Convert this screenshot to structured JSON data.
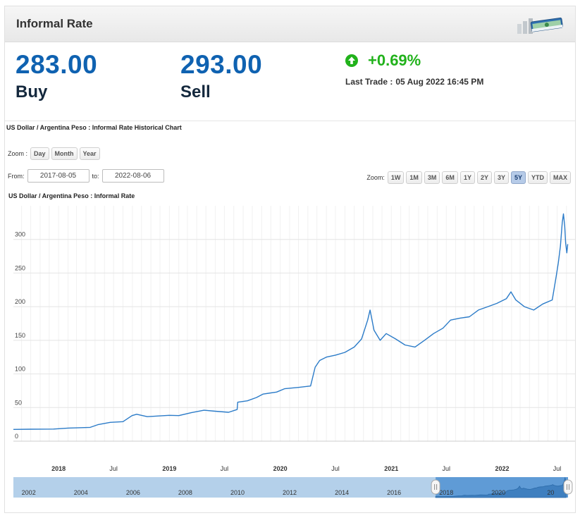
{
  "header": {
    "title": "Informal Rate",
    "icon": "money-stack-icon"
  },
  "quote": {
    "buy_value": "283.00",
    "buy_label": "Buy",
    "sell_value": "293.00",
    "sell_label": "Sell",
    "change": "+0.69%",
    "change_color": "#21b21b",
    "last_trade_label": "Last Trade :",
    "last_trade_value": "05 Aug 2022 16:45 PM"
  },
  "chart_heading": "US Dollar / Argentina Peso : Informal Rate Historical Chart",
  "zoom_period": {
    "label": "Zoom :",
    "buttons": [
      "Day",
      "Month",
      "Year"
    ]
  },
  "date_range": {
    "from_label": "From:",
    "from_value": "2017-08-05",
    "to_label": "to:",
    "to_value": "2022-08-06"
  },
  "zoom_range": {
    "label": "Zoom:",
    "buttons": [
      "1W",
      "1M",
      "3M",
      "6M",
      "1Y",
      "2Y",
      "3Y",
      "5Y",
      "YTD",
      "MAX"
    ],
    "active": "5Y"
  },
  "chart_data": {
    "type": "line",
    "title": "US Dollar / Argentina Peso : Informal Rate",
    "series": [
      {
        "color": "#2b7bc8",
        "points": [
          [
            "2017-08-05",
            17.5
          ],
          [
            "2017-10-01",
            17.8
          ],
          [
            "2017-12-15",
            18.0
          ],
          [
            "2018-02-01",
            19.5
          ],
          [
            "2018-04-15",
            20.5
          ],
          [
            "2018-05-10",
            24.5
          ],
          [
            "2018-06-20",
            28.0
          ],
          [
            "2018-08-01",
            29.0
          ],
          [
            "2018-08-31",
            38.0
          ],
          [
            "2018-09-15",
            40.0
          ],
          [
            "2018-10-20",
            36.5
          ],
          [
            "2018-12-31",
            38.5
          ],
          [
            "2019-02-01",
            38.0
          ],
          [
            "2019-03-15",
            42.5
          ],
          [
            "2019-04-25",
            46.0
          ],
          [
            "2019-06-01",
            44.5
          ],
          [
            "2019-07-15",
            43.0
          ],
          [
            "2019-08-12",
            47.0
          ],
          [
            "2019-08-14",
            58.0
          ],
          [
            "2019-09-15",
            60.0
          ],
          [
            "2019-10-15",
            65.0
          ],
          [
            "2019-11-05",
            70.0
          ],
          [
            "2019-12-20",
            73.0
          ],
          [
            "2020-01-15",
            78.0
          ],
          [
            "2020-03-01",
            80.0
          ],
          [
            "2020-04-10",
            82.0
          ],
          [
            "2020-04-25",
            110.0
          ],
          [
            "2020-05-10",
            120.0
          ],
          [
            "2020-06-01",
            125.0
          ],
          [
            "2020-07-01",
            128.0
          ],
          [
            "2020-08-01",
            132.0
          ],
          [
            "2020-09-01",
            140.0
          ],
          [
            "2020-09-25",
            152.0
          ],
          [
            "2020-10-15",
            180.0
          ],
          [
            "2020-10-23",
            195.0
          ],
          [
            "2020-11-05",
            165.0
          ],
          [
            "2020-11-25",
            150.0
          ],
          [
            "2020-12-15",
            160.0
          ],
          [
            "2021-01-15",
            152.0
          ],
          [
            "2021-02-15",
            143.0
          ],
          [
            "2021-03-20",
            140.0
          ],
          [
            "2021-04-20",
            150.0
          ],
          [
            "2021-05-20",
            160.0
          ],
          [
            "2021-06-20",
            168.0
          ],
          [
            "2021-07-15",
            180.0
          ],
          [
            "2021-08-15",
            183.0
          ],
          [
            "2021-09-15",
            185.0
          ],
          [
            "2021-10-15",
            195.0
          ],
          [
            "2021-11-15",
            200.0
          ],
          [
            "2021-12-15",
            205.0
          ],
          [
            "2022-01-15",
            212.0
          ],
          [
            "2022-01-30",
            222.0
          ],
          [
            "2022-02-15",
            210.0
          ],
          [
            "2022-03-15",
            200.0
          ],
          [
            "2022-04-15",
            195.0
          ],
          [
            "2022-05-15",
            204.0
          ],
          [
            "2022-06-15",
            210.0
          ],
          [
            "2022-06-28",
            245.0
          ],
          [
            "2022-07-05",
            265.0
          ],
          [
            "2022-07-12",
            290.0
          ],
          [
            "2022-07-18",
            325.0
          ],
          [
            "2022-07-22",
            338.0
          ],
          [
            "2022-07-26",
            320.0
          ],
          [
            "2022-07-29",
            295.0
          ],
          [
            "2022-08-02",
            280.0
          ],
          [
            "2022-08-05",
            293.0
          ]
        ]
      }
    ],
    "yaxis": {
      "ticks": [
        0,
        50,
        100,
        150,
        200,
        250,
        300
      ],
      "range": [
        0,
        350
      ]
    },
    "xaxis": {
      "range": [
        "2017-08-05",
        "2022-08-06"
      ],
      "ticks": [
        {
          "date": "2018-01-01",
          "label": "2018",
          "bold": true
        },
        {
          "date": "2018-07-01",
          "label": "Jul",
          "bold": false
        },
        {
          "date": "2019-01-01",
          "label": "2019",
          "bold": true
        },
        {
          "date": "2019-07-01",
          "label": "Jul",
          "bold": false
        },
        {
          "date": "2020-01-01",
          "label": "2020",
          "bold": true
        },
        {
          "date": "2020-07-01",
          "label": "Jul",
          "bold": false
        },
        {
          "date": "2021-01-01",
          "label": "2021",
          "bold": true
        },
        {
          "date": "2021-07-01",
          "label": "Jul",
          "bold": false
        },
        {
          "date": "2022-01-01",
          "label": "2022",
          "bold": true
        },
        {
          "date": "2022-07-01",
          "label": "Jul",
          "bold": false
        }
      ]
    },
    "navigator": {
      "range": [
        "2001-06-01",
        "2022-09-01"
      ],
      "ticks": [
        "2002",
        "2004",
        "2006",
        "2008",
        "2010",
        "2012",
        "2014",
        "2016",
        "2018",
        "2020",
        "20"
      ],
      "selected": [
        "2017-08-05",
        "2022-08-06"
      ]
    },
    "grid": true
  }
}
